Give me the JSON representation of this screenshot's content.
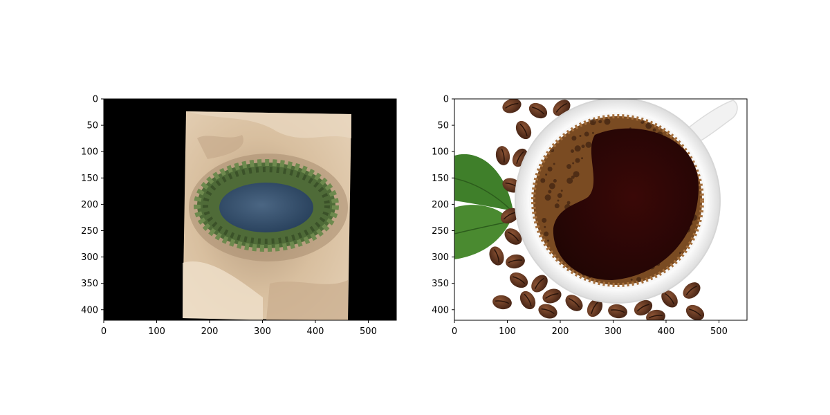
{
  "figure": {
    "panels": [
      {
        "id": "left",
        "subject": "aerial view of a desert oasis ringed by palm trees, pasted on black",
        "x_ticks": [
          "0",
          "100",
          "200",
          "300",
          "400",
          "500"
        ],
        "y_ticks": [
          "0",
          "50",
          "100",
          "150",
          "200",
          "250",
          "300",
          "350",
          "400"
        ],
        "xlim": [
          0,
          553
        ],
        "ylim": [
          0,
          420
        ]
      },
      {
        "id": "right",
        "subject": "top view of a cup of black coffee with coffee beans and leaves",
        "x_ticks": [
          "0",
          "100",
          "200",
          "300",
          "400",
          "500"
        ],
        "y_ticks": [
          "0",
          "50",
          "100",
          "150",
          "200",
          "250",
          "300",
          "350",
          "400"
        ],
        "xlim": [
          0,
          553
        ],
        "ylim": [
          0,
          420
        ]
      }
    ]
  },
  "colors": {
    "background": "#000000",
    "sand": "#dcc3a5",
    "water": "#2f4a66",
    "palm": "#4f6b38",
    "coffee": "#2a0706",
    "crema": "#7a4b22",
    "bean": "#5a2f1b",
    "leaf": "#3f7f2a"
  }
}
